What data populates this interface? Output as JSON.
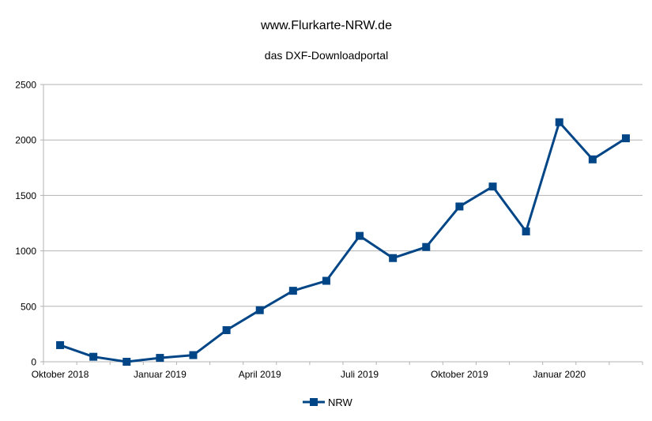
{
  "chart_data": {
    "type": "line",
    "title": "www.Flurkarte-NRW.de",
    "subtitle": "das DXF-Downloadportal",
    "xlabel": "",
    "ylabel": "",
    "ylim": [
      0,
      2500
    ],
    "yticks": [
      "0",
      "500",
      "1000",
      "1500",
      "2000",
      "2500"
    ],
    "xtick_labels": [
      {
        "label": "Oktober 2018",
        "index": 0
      },
      {
        "label": "Januar 2019",
        "index": 3
      },
      {
        "label": "April 2019",
        "index": 6
      },
      {
        "label": "Juli 2019",
        "index": 9
      },
      {
        "label": "Oktober 2019",
        "index": 12
      },
      {
        "label": "Januar 2020",
        "index": 15
      }
    ],
    "x": [
      "2018-10",
      "2018-11",
      "2018-12",
      "2019-01",
      "2019-02",
      "2019-03",
      "2019-04",
      "2019-05",
      "2019-06",
      "2019-07",
      "2019-08",
      "2019-09",
      "2019-10",
      "2019-11",
      "2019-12",
      "2020-01",
      "2020-02",
      "2020-03"
    ],
    "grid": true,
    "legend_position": "bottom",
    "series": [
      {
        "name": "NRW",
        "color": "#004586",
        "values": [
          150,
          45,
          0,
          35,
          60,
          285,
          465,
          640,
          730,
          1135,
          935,
          1035,
          1400,
          1580,
          1175,
          2160,
          1825,
          2015
        ]
      }
    ]
  }
}
